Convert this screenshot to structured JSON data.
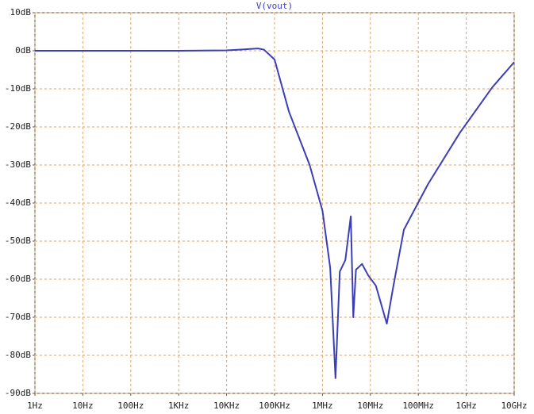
{
  "chart_data": {
    "type": "line",
    "title": "V(vout)",
    "x": [
      1,
      10,
      100,
      1000,
      10000,
      20000,
      45000,
      60000,
      100000,
      200000,
      540000,
      1000000,
      1450000,
      1870000,
      2300000,
      3000000,
      3900000,
      4400000,
      5000000,
      6700000,
      9000000,
      13000000,
      22000000,
      30000000,
      50000000,
      160000000,
      740000000,
      3500000000,
      10000000000
    ],
    "series": [
      {
        "name": "V(vout)",
        "color": "#3b3fb5",
        "values": [
          0,
          0,
          0,
          0,
          0.1,
          0.3,
          0.6,
          0.3,
          -2.3,
          -16,
          -30,
          -42,
          -57,
          -86,
          -58,
          -55,
          -43.5,
          -70,
          -57.5,
          -56,
          -59,
          -61.7,
          -71.7,
          -62,
          -47,
          -35,
          -21.5,
          -9.6,
          -3
        ]
      }
    ],
    "xlim": [
      1,
      10000000000
    ],
    "log_x": true,
    "xticks": [
      {
        "value": 1,
        "label": "1Hz"
      },
      {
        "value": 10,
        "label": "10Hz"
      },
      {
        "value": 100,
        "label": "100Hz"
      },
      {
        "value": 1000,
        "label": "1KHz"
      },
      {
        "value": 10000,
        "label": "10KHz"
      },
      {
        "value": 100000,
        "label": "100KHz"
      },
      {
        "value": 1000000,
        "label": "1MHz"
      },
      {
        "value": 10000000,
        "label": "10MHz"
      },
      {
        "value": 100000000,
        "label": "100MHz"
      },
      {
        "value": 1000000000,
        "label": "1GHz"
      },
      {
        "value": 10000000000,
        "label": "10GHz"
      }
    ],
    "ylim": [
      -90,
      10
    ],
    "yticks": [
      {
        "value": 10,
        "label": "10dB"
      },
      {
        "value": 0,
        "label": "0dB"
      },
      {
        "value": -10,
        "label": "-10dB"
      },
      {
        "value": -20,
        "label": "-20dB"
      },
      {
        "value": -30,
        "label": "-30dB"
      },
      {
        "value": -40,
        "label": "-40dB"
      },
      {
        "value": -50,
        "label": "-50dB"
      },
      {
        "value": -60,
        "label": "-60dB"
      },
      {
        "value": -70,
        "label": "-70dB"
      },
      {
        "value": -80,
        "label": "-80dB"
      },
      {
        "value": -90,
        "label": "-90dB"
      }
    ],
    "grid": true
  }
}
